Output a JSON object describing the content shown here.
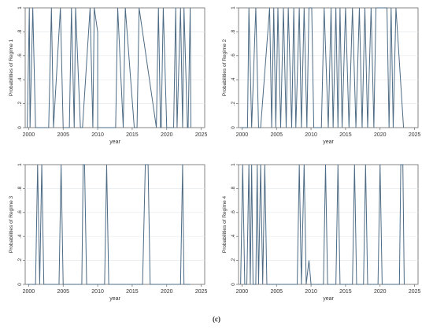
{
  "caption": "(c)",
  "colors": {
    "line": "#4d6b84",
    "grid": "#e4e8ec",
    "frame": "#666666",
    "text": "#333333"
  },
  "chart_data": [
    {
      "type": "line",
      "ylabel": "Probabilities of Regime 1",
      "xlabel": "year",
      "xlim": [
        1999.5,
        2025.5
      ],
      "ylim": [
        0,
        1
      ],
      "xticks": [
        2000,
        2005,
        2010,
        2015,
        2020,
        2025
      ],
      "yticks": [
        0,
        0.2,
        0.4,
        0.6,
        0.8,
        1
      ],
      "ytick_labels": [
        "0",
        ".2",
        ".4",
        ".6",
        ".8",
        "1"
      ],
      "x": [
        1999.8,
        2000.1,
        2000.2,
        2000.6,
        2001.0,
        2002.9,
        2003.3,
        2003.6,
        2004.6,
        2005.0,
        2005.9,
        2006.2,
        2006.6,
        2006.8,
        2007.5,
        2007.8,
        2008.9,
        2009.3,
        2009.5,
        2010.0,
        2010.0,
        2012.6,
        2012.9,
        2013.7,
        2014.0,
        2015.3,
        2015.7,
        2016.0,
        2018.5,
        2018.8,
        2019.1,
        2019.2,
        2019.5,
        2020.0,
        2021.0,
        2021.3,
        2021.5,
        2022.0,
        2022.3,
        2022.5,
        2023.0,
        2023.1,
        2023.4,
        2023.5
      ],
      "y": [
        0,
        1,
        0,
        1,
        0,
        0,
        1,
        0,
        1,
        0,
        0,
        1,
        0,
        1,
        0,
        0,
        1,
        0,
        1,
        0.8,
        0,
        0,
        1,
        0,
        1,
        0,
        0,
        1,
        0,
        1,
        0,
        0,
        1,
        0,
        0,
        1,
        0,
        1,
        0,
        1,
        0,
        0,
        1,
        0
      ]
    },
    {
      "type": "line",
      "ylabel": "Probabilities of Regime 2",
      "xlabel": "year",
      "xlim": [
        1999.5,
        2025.5
      ],
      "ylim": [
        0,
        1
      ],
      "xticks": [
        2000,
        2005,
        2010,
        2015,
        2020,
        2025
      ],
      "yticks": [
        0,
        0.2,
        0.4,
        0.6,
        0.8,
        1
      ],
      "ytick_labels": [
        "0",
        ".2",
        ".4",
        ".6",
        ".8",
        "1"
      ],
      "x": [
        1999.8,
        2000.8,
        2001.0,
        2001.4,
        2002.0,
        2002.4,
        2002.7,
        2004.0,
        2004.3,
        2004.6,
        2004.9,
        2005.2,
        2005.6,
        2006.0,
        2006.4,
        2006.7,
        2007.2,
        2007.5,
        2007.8,
        2008.3,
        2008.6,
        2009.0,
        2009.4,
        2009.7,
        2010.1,
        2010.4,
        2011.5,
        2011.9,
        2012.5,
        2012.9,
        2013.2,
        2013.6,
        2013.9,
        2014.2,
        2014.5,
        2015.0,
        2015.5,
        2016.0,
        2016.5,
        2017.0,
        2017.4,
        2017.8,
        2018.2,
        2018.7,
        2019.1,
        2019.4,
        2021.0,
        2021.3,
        2021.6,
        2021.9,
        2022.3,
        2023.4
      ],
      "y": [
        0,
        0,
        1,
        0,
        1,
        0,
        0,
        1,
        0,
        1,
        0,
        1,
        0,
        1,
        0,
        1,
        0,
        1,
        0,
        1,
        0,
        1,
        0,
        1,
        1,
        0,
        0,
        1,
        0,
        1,
        0,
        1,
        0,
        1,
        0,
        1,
        0,
        1,
        0,
        1,
        0,
        1,
        0,
        1,
        0,
        1,
        1,
        0,
        1,
        0,
        1,
        0
      ]
    },
    {
      "type": "line",
      "ylabel": "Probabilities of Regime 3",
      "xlabel": "year",
      "xlim": [
        1999.5,
        2025.5
      ],
      "ylim": [
        0,
        1
      ],
      "xticks": [
        2000,
        2005,
        2010,
        2015,
        2020,
        2025
      ],
      "yticks": [
        0,
        0.2,
        0.4,
        0.6,
        0.8,
        1
      ],
      "ytick_labels": [
        "0",
        ".2",
        ".4",
        ".6",
        ".8",
        "1"
      ],
      "x": [
        1999.8,
        2001.0,
        2001.3,
        2001.6,
        2001.9,
        2002.2,
        2004.4,
        2004.7,
        2005.0,
        2007.7,
        2007.9,
        2008.1,
        2008.4,
        2011.0,
        2011.3,
        2011.6,
        2016.5,
        2016.9,
        2017.3,
        2017.6,
        2022.0,
        2022.3,
        2022.5,
        2023.4
      ],
      "y": [
        0,
        0,
        1,
        0,
        1,
        0,
        0,
        1,
        0,
        0,
        1,
        1,
        0,
        0,
        1,
        0,
        0,
        1,
        1,
        0,
        0,
        1,
        0,
        0
      ]
    },
    {
      "type": "line",
      "ylabel": "Probabilities of Regime 4",
      "xlabel": "year",
      "xlim": [
        1999.5,
        2025.5
      ],
      "ylim": [
        0,
        1
      ],
      "xticks": [
        2000,
        2005,
        2010,
        2015,
        2020,
        2025
      ],
      "yticks": [
        0,
        0.2,
        0.4,
        0.6,
        0.8,
        1
      ],
      "ytick_labels": [
        "0",
        ".2",
        ".4",
        ".6",
        ".8",
        "1"
      ],
      "x": [
        1999.8,
        2000.1,
        2000.4,
        2000.7,
        2001.0,
        2001.2,
        2001.4,
        2001.6,
        2002.0,
        2002.2,
        2002.4,
        2002.7,
        2003.0,
        2003.3,
        2003.6,
        2008.0,
        2008.3,
        2008.6,
        2009.0,
        2009.3,
        2009.7,
        2010.0,
        2011.8,
        2012.1,
        2012.4,
        2013.6,
        2013.9,
        2014.2,
        2016.0,
        2016.3,
        2016.6,
        2017.6,
        2017.9,
        2018.2,
        2019.7,
        2020.0,
        2020.3,
        2022.8,
        2023.0,
        2023.3,
        2023.5
      ],
      "y": [
        0,
        1,
        0,
        0,
        1,
        0,
        1,
        0,
        0,
        1,
        0,
        1,
        0,
        1,
        0,
        0,
        1,
        0,
        1,
        0,
        0.2,
        0,
        0,
        1,
        0,
        0,
        1,
        0,
        0,
        1,
        0,
        0,
        1,
        0,
        0,
        1,
        0,
        0,
        1,
        1,
        0
      ]
    }
  ]
}
